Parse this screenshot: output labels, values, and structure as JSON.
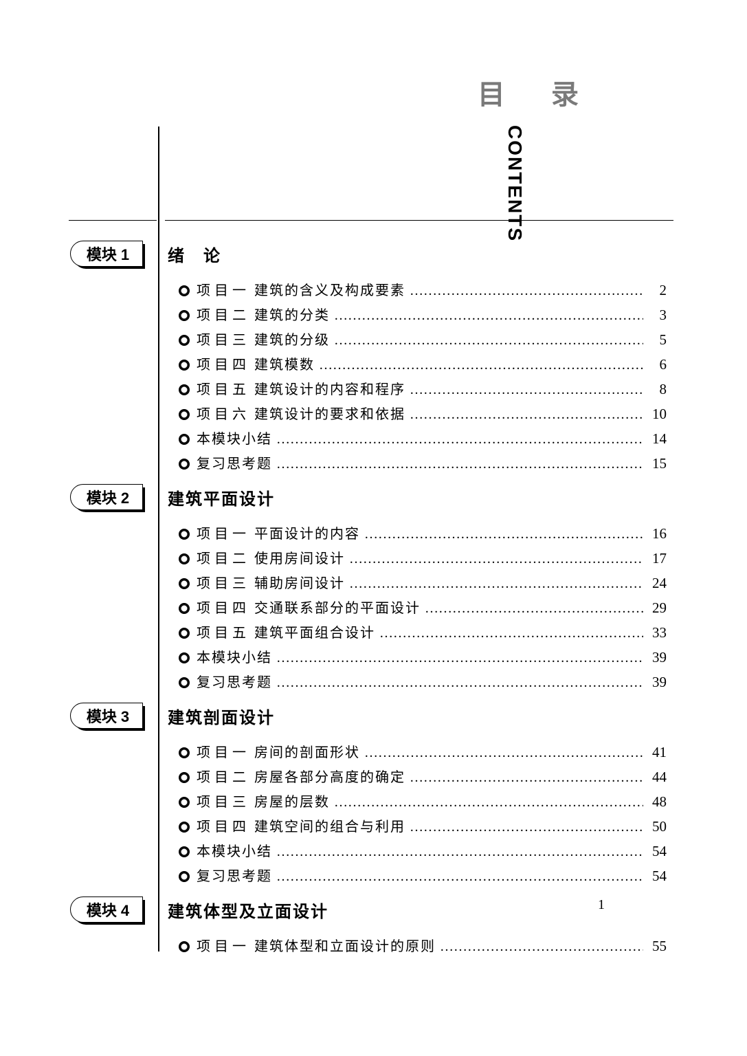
{
  "header": {
    "title_cn": "目 录",
    "title_en": "CONTENTS"
  },
  "page_number": "1",
  "text_color": "#000000",
  "bg_color": "#ffffff",
  "accent_gray": "#7a7a7a",
  "fonts": {
    "title_cn_fontsize": 40,
    "title_en_fontsize": 28,
    "module_label_fontsize": 22,
    "module_title_fontsize": 24,
    "entry_fontsize": 20
  },
  "modules": [
    {
      "label": "模块 1",
      "title": "绪　论",
      "entries": [
        {
          "prefix": "项目一",
          "text": "建筑的含义及构成要素",
          "page": "2"
        },
        {
          "prefix": "项目二",
          "text": "建筑的分类",
          "page": "3"
        },
        {
          "prefix": "项目三",
          "text": "建筑的分级",
          "page": "5"
        },
        {
          "prefix": "项目四",
          "text": "建筑模数",
          "page": "6"
        },
        {
          "prefix": "项目五",
          "text": "建筑设计的内容和程序",
          "page": "8"
        },
        {
          "prefix": "项目六",
          "text": "建筑设计的要求和依据",
          "page": "10"
        },
        {
          "prefix": "",
          "text": "本模块小结",
          "page": "14"
        },
        {
          "prefix": "",
          "text": "复习思考题",
          "page": "15"
        }
      ]
    },
    {
      "label": "模块 2",
      "title": "建筑平面设计",
      "entries": [
        {
          "prefix": "项目一",
          "text": "平面设计的内容",
          "page": "16"
        },
        {
          "prefix": "项目二",
          "text": "使用房间设计",
          "page": "17"
        },
        {
          "prefix": "项目三",
          "text": "辅助房间设计",
          "page": "24"
        },
        {
          "prefix": "项目四",
          "text": "交通联系部分的平面设计",
          "page": "29"
        },
        {
          "prefix": "项目五",
          "text": "建筑平面组合设计",
          "page": "33"
        },
        {
          "prefix": "",
          "text": "本模块小结",
          "page": "39"
        },
        {
          "prefix": "",
          "text": "复习思考题",
          "page": "39"
        }
      ]
    },
    {
      "label": "模块 3",
      "title": "建筑剖面设计",
      "entries": [
        {
          "prefix": "项目一",
          "text": "房间的剖面形状",
          "page": "41"
        },
        {
          "prefix": "项目二",
          "text": "房屋各部分高度的确定",
          "page": "44"
        },
        {
          "prefix": "项目三",
          "text": "房屋的层数",
          "page": "48"
        },
        {
          "prefix": "项目四",
          "text": "建筑空间的组合与利用",
          "page": "50"
        },
        {
          "prefix": "",
          "text": "本模块小结",
          "page": "54"
        },
        {
          "prefix": "",
          "text": "复习思考题",
          "page": "54"
        }
      ]
    },
    {
      "label": "模块 4",
      "title": "建筑体型及立面设计",
      "entries": [
        {
          "prefix": "项目一",
          "text": "建筑体型和立面设计的原则",
          "page": "55"
        }
      ]
    }
  ]
}
